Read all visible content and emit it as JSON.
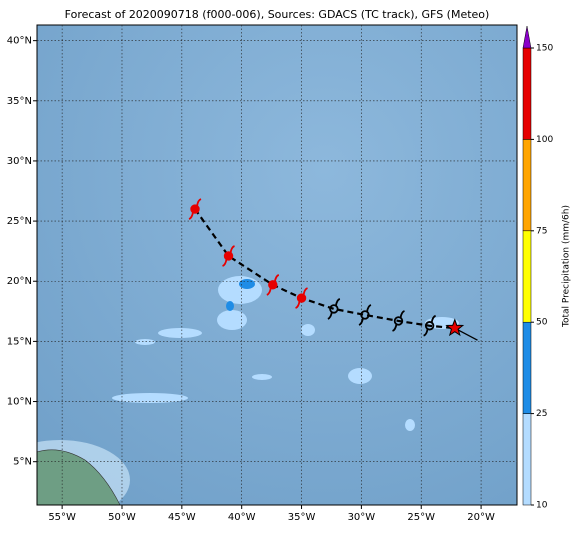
{
  "map": {
    "title": "Forecast of 2020090718 (f000-006), Sources: GDACS (TC track), GFS (Meteo)",
    "lon_lim": [
      -57.1,
      -17.0
    ],
    "lat_lim": [
      1.4,
      41.3
    ],
    "lon_ticks": [
      {
        "value": -55,
        "label": "55°W"
      },
      {
        "value": -50,
        "label": "50°W"
      },
      {
        "value": -45,
        "label": "45°W"
      },
      {
        "value": -40,
        "label": "40°W"
      },
      {
        "value": -35,
        "label": "35°W"
      },
      {
        "value": -30,
        "label": "30°W"
      },
      {
        "value": -25,
        "label": "25°W"
      },
      {
        "value": -20,
        "label": "20°W"
      }
    ],
    "lat_ticks": [
      {
        "value": 5,
        "label": "5°N"
      },
      {
        "value": 10,
        "label": "10°N"
      },
      {
        "value": 15,
        "label": "15°N"
      },
      {
        "value": 20,
        "label": "20°N"
      },
      {
        "value": 25,
        "label": "25°N"
      },
      {
        "value": 30,
        "label": "30°N"
      },
      {
        "value": 35,
        "label": "35°N"
      },
      {
        "value": 40,
        "label": "40°N"
      }
    ],
    "grid": true,
    "track": {
      "past": {
        "lon": [
          -43.9,
          -41.1,
          -37.4,
          -35.0
        ],
        "lat": [
          26.0,
          22.1,
          19.7,
          18.6
        ],
        "color": "#e60000"
      },
      "forecast": {
        "lon": [
          -32.3,
          -29.7,
          -26.9,
          -24.3
        ],
        "lat": [
          17.7,
          17.2,
          16.7,
          16.3
        ],
        "color": "#000000"
      },
      "current": {
        "lon": -22.2,
        "lat": 16.1,
        "color": "#e60000"
      },
      "heading": {
        "lon": -20.3,
        "lat": 15.1
      }
    },
    "colorbar": {
      "label": "Total Precipitation (mm/6h)",
      "ticks": [
        10,
        25,
        50,
        75,
        100,
        150
      ],
      "colors": [
        "#b4dcff",
        "#1e8ce6",
        "#ffff00",
        "#ffa500",
        "#e60000"
      ],
      "extend_color": "#8a00c8"
    }
  }
}
